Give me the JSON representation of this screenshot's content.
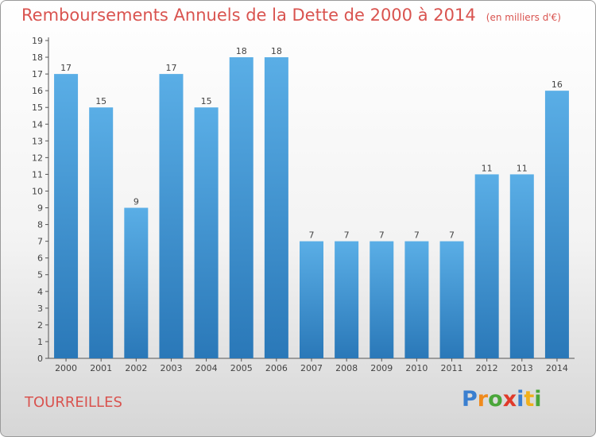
{
  "chart_data": {
    "type": "bar",
    "title": "Remboursements Annuels de la Dette de 2000 à 2014",
    "subtitle": "(en milliers d'€)",
    "categories": [
      "2000",
      "2001",
      "2002",
      "2003",
      "2004",
      "2005",
      "2006",
      "2007",
      "2008",
      "2009",
      "2010",
      "2011",
      "2012",
      "2013",
      "2014"
    ],
    "values": [
      17,
      15,
      9,
      17,
      15,
      18,
      18,
      7,
      7,
      7,
      7,
      7,
      11,
      11,
      16
    ],
    "data_labels": [
      "17",
      "15",
      "9",
      "17",
      "15",
      "18",
      "18",
      "7",
      "7",
      "7",
      "7",
      "7",
      "11",
      "11",
      "16"
    ],
    "yticks": [
      0,
      1,
      2,
      3,
      4,
      5,
      6,
      7,
      8,
      9,
      10,
      11,
      12,
      13,
      14,
      15,
      16,
      17,
      18,
      19
    ],
    "ylim": [
      0,
      19
    ],
    "xlabel": "",
    "ylabel": "",
    "grid": false,
    "bar_color_top": "#5aaee6",
    "bar_color_bottom": "#2a78b8"
  },
  "footer": {
    "commune": "TOURREILLES",
    "logo_letters": [
      "P",
      "r",
      "o",
      "x",
      "i",
      "t",
      "i"
    ],
    "logo_colors": [
      "#3a7fd0",
      "#f08a1c",
      "#4aa63a",
      "#e03a2a",
      "#3a7fd0",
      "#f0b01c",
      "#4aa63a"
    ]
  }
}
